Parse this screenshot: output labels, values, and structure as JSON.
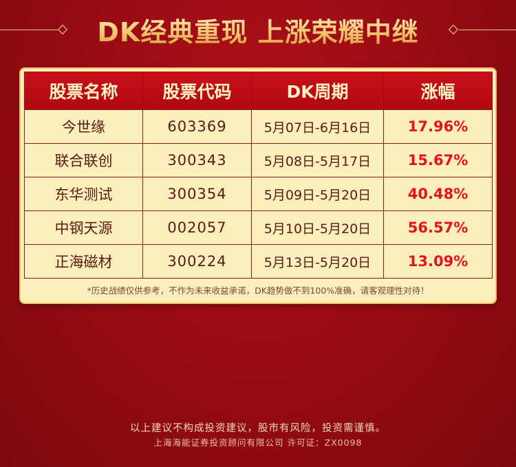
{
  "header": {
    "title": "DK经典重现 上涨荣耀中继"
  },
  "table": {
    "headers": [
      "股票名称",
      "股票代码",
      "DK周期",
      "涨幅"
    ],
    "rows": [
      {
        "name": "今世缘",
        "code": "603369",
        "period": "5月07日-6月16日",
        "rise": "17.96%"
      },
      {
        "name": "联合联创",
        "code": "300343",
        "period": "5月08日-5月17日",
        "rise": "15.67%"
      },
      {
        "name": "东华测试",
        "code": "300354",
        "period": "5月09日-5月20日",
        "rise": "40.48%"
      },
      {
        "name": "中钢天源",
        "code": "002057",
        "period": "5月10日-5月20日",
        "rise": "56.57%"
      },
      {
        "name": "正海磁材",
        "code": "300224",
        "period": "5月13日-5月20日",
        "rise": "13.09%"
      }
    ]
  },
  "disclaimer": "*历史战绩仅供参考，不作为未来收益承诺，DK趋势做不到100%准确，请客观理性对待！",
  "footer": {
    "line1": "以上建议不构成投资建议，股市有风险，投资需谨慎。",
    "line2": "上海海能证券投资顾问有限公司 许可证：ZX0098"
  },
  "colors": {
    "background": "#9a0c14",
    "gold": "#f5c773",
    "table_header": "#c80f1a",
    "rise_text": "#e5121c",
    "card_bg": "#fbeebd"
  }
}
